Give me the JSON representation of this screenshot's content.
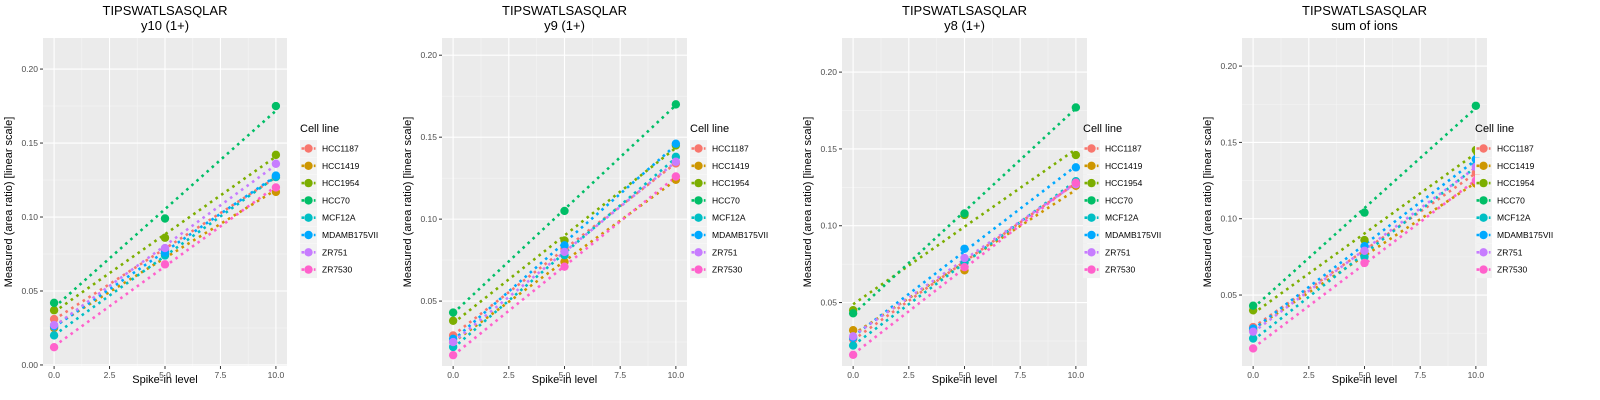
{
  "chart_data": [
    {
      "type": "scatter",
      "title": "TIPSWATLSASQLAR",
      "subtitle": "y10 (1+)",
      "xlabel": "Spike-in level",
      "ylabel": "Measured (area ratio) [linear scale]",
      "x": [
        0,
        5,
        10
      ],
      "xticks": [
        "0.0",
        "2.5",
        "5.0",
        "7.5",
        "10.0"
      ],
      "xtick_values": [
        0,
        2.5,
        5,
        7.5,
        10
      ],
      "xlim": [
        -0.5,
        10.5
      ],
      "yticks": [
        "0.00",
        "0.05",
        "0.10",
        "0.15",
        "0.20"
      ],
      "ytick_values": [
        0,
        0.05,
        0.1,
        0.15,
        0.2
      ],
      "ylim": [
        -0.0007,
        0.221
      ],
      "grid": true,
      "fit_lines": "linear, dotted",
      "legend_title": "Cell line",
      "legend_position": "right",
      "series": [
        {
          "name": "HCC1187",
          "color": "#F8766D",
          "values": [
            0.031,
            0.078,
            0.127
          ]
        },
        {
          "name": "HCC1419",
          "color": "#CD9600",
          "values": [
            0.025,
            0.075,
            0.117
          ]
        },
        {
          "name": "HCC1954",
          "color": "#7CAE00",
          "values": [
            0.037,
            0.086,
            0.142
          ]
        },
        {
          "name": "HCC70",
          "color": "#00BE67",
          "values": [
            0.042,
            0.099,
            0.175
          ]
        },
        {
          "name": "MCF12A",
          "color": "#00BFC4",
          "values": [
            0.02,
            0.074,
            0.127
          ]
        },
        {
          "name": "MDAMB175VII",
          "color": "#00A9FF",
          "values": [
            0.026,
            0.076,
            0.128
          ]
        },
        {
          "name": "ZR751",
          "color": "#C77CFF",
          "values": [
            0.027,
            0.079,
            0.136
          ]
        },
        {
          "name": "ZR7530",
          "color": "#FF61CC",
          "values": [
            0.012,
            0.068,
            0.12
          ]
        }
      ]
    },
    {
      "type": "scatter",
      "title": "TIPSWATLSASQLAR",
      "subtitle": "y9 (1+)",
      "xlabel": "Spike-in level",
      "ylabel": "Measured (area ratio) [linear scale]",
      "x": [
        0,
        5,
        10
      ],
      "xticks": [
        "0.0",
        "2.5",
        "5.0",
        "7.5",
        "10.0"
      ],
      "xtick_values": [
        0,
        2.5,
        5,
        7.5,
        10
      ],
      "xlim": [
        -0.5,
        10.5
      ],
      "yticks": [
        "0.05",
        "0.10",
        "0.15",
        "0.20"
      ],
      "ytick_values": [
        0.05,
        0.1,
        0.15,
        0.2
      ],
      "ylim": [
        0.0104,
        0.2105
      ],
      "grid": true,
      "fit_lines": "linear, dotted",
      "legend_title": "Cell line",
      "legend_position": "right",
      "series": [
        {
          "name": "HCC1187",
          "color": "#F8766D",
          "values": [
            0.029,
            0.082,
            0.134
          ]
        },
        {
          "name": "HCC1419",
          "color": "#CD9600",
          "values": [
            0.025,
            0.074,
            0.124
          ]
        },
        {
          "name": "HCC1954",
          "color": "#7CAE00",
          "values": [
            0.038,
            0.087,
            0.145
          ]
        },
        {
          "name": "HCC70",
          "color": "#00BE67",
          "values": [
            0.043,
            0.105,
            0.17
          ]
        },
        {
          "name": "MCF12A",
          "color": "#00BFC4",
          "values": [
            0.022,
            0.078,
            0.138
          ]
        },
        {
          "name": "MDAMB175VII",
          "color": "#00A9FF",
          "values": [
            0.027,
            0.084,
            0.146
          ]
        },
        {
          "name": "ZR751",
          "color": "#C77CFF",
          "values": [
            0.025,
            0.08,
            0.135
          ]
        },
        {
          "name": "ZR7530",
          "color": "#FF61CC",
          "values": [
            0.017,
            0.071,
            0.126
          ]
        }
      ]
    },
    {
      "type": "scatter",
      "title": "TIPSWATLSASQLAR",
      "subtitle": "y8 (1+)",
      "xlabel": "Spike-in level",
      "ylabel": "Measured (area ratio) [linear scale]",
      "x": [
        0,
        5,
        10
      ],
      "xticks": [
        "0.0",
        "2.5",
        "5.0",
        "7.5",
        "10.0"
      ],
      "xtick_values": [
        0,
        2.5,
        5,
        7.5,
        10
      ],
      "xlim": [
        -0.5,
        10.5
      ],
      "yticks": [
        "0.05",
        "0.10",
        "0.15",
        "0.20"
      ],
      "ytick_values": [
        0.05,
        0.1,
        0.15,
        0.2
      ],
      "ylim": [
        0.0087,
        0.2222
      ],
      "grid": true,
      "fit_lines": "linear, dotted",
      "legend_title": "Cell line",
      "legend_position": "right",
      "series": [
        {
          "name": "HCC1187",
          "color": "#F8766D",
          "values": [
            0.026,
            0.076,
            0.128
          ]
        },
        {
          "name": "HCC1419",
          "color": "#CD9600",
          "values": [
            0.032,
            0.071,
            0.126
          ]
        },
        {
          "name": "HCC1954",
          "color": "#7CAE00",
          "values": [
            0.045,
            0.107,
            0.146
          ]
        },
        {
          "name": "HCC70",
          "color": "#00BE67",
          "values": [
            0.043,
            0.108,
            0.177
          ]
        },
        {
          "name": "MCF12A",
          "color": "#00BFC4",
          "values": [
            0.022,
            0.076,
            0.129
          ]
        },
        {
          "name": "MDAMB175VII",
          "color": "#00A9FF",
          "values": [
            0.027,
            0.085,
            0.138
          ]
        },
        {
          "name": "ZR751",
          "color": "#C77CFF",
          "values": [
            0.028,
            0.079,
            0.127
          ]
        },
        {
          "name": "ZR7530",
          "color": "#FF61CC",
          "values": [
            0.016,
            0.073,
            0.128
          ]
        }
      ]
    },
    {
      "type": "scatter",
      "title": "TIPSWATLSASQLAR",
      "subtitle": "sum of ions",
      "xlabel": "Spike-in level",
      "ylabel": "Measured (area ratio) [linear scale]",
      "x": [
        0,
        5,
        10
      ],
      "xticks": [
        "0.0",
        "2.5",
        "5.0",
        "7.5",
        "10.0"
      ],
      "xtick_values": [
        0,
        2.5,
        5,
        7.5,
        10
      ],
      "xlim": [
        -0.5,
        10.5
      ],
      "yticks": [
        "0.05",
        "0.10",
        "0.15",
        "0.20"
      ],
      "ytick_values": [
        0.05,
        0.1,
        0.15,
        0.2
      ],
      "ylim": [
        0.0035,
        0.2184
      ],
      "grid": true,
      "fit_lines": "linear, dotted",
      "legend_title": "Cell line",
      "legend_position": "right",
      "series": [
        {
          "name": "HCC1187",
          "color": "#F8766D",
          "values": [
            0.029,
            0.079,
            0.13
          ]
        },
        {
          "name": "HCC1419",
          "color": "#CD9600",
          "values": [
            0.027,
            0.077,
            0.123
          ]
        },
        {
          "name": "HCC1954",
          "color": "#7CAE00",
          "values": [
            0.04,
            0.086,
            0.145
          ]
        },
        {
          "name": "HCC70",
          "color": "#00BE67",
          "values": [
            0.043,
            0.104,
            0.174
          ]
        },
        {
          "name": "MCF12A",
          "color": "#00BFC4",
          "values": [
            0.0215,
            0.075,
            0.135
          ]
        },
        {
          "name": "MDAMB175VII",
          "color": "#00A9FF",
          "values": [
            0.028,
            0.082,
            0.139
          ]
        },
        {
          "name": "ZR751",
          "color": "#C77CFF",
          "values": [
            0.026,
            0.079,
            0.134
          ]
        },
        {
          "name": "ZR7530",
          "color": "#FF61CC",
          "values": [
            0.015,
            0.071,
            0.125
          ]
        }
      ]
    }
  ]
}
